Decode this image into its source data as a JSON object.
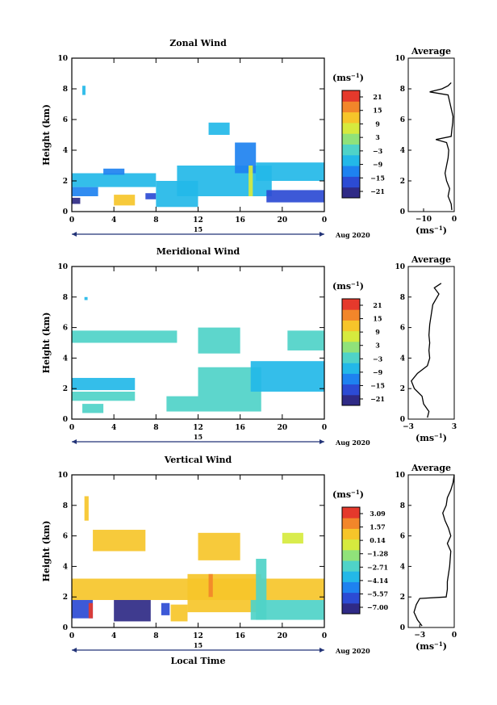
{
  "figure": {
    "bottom_xlabel": "Local Time",
    "date_label": "Aug 2020",
    "day_label": "15",
    "unit_label": "(ms",
    "unit_sup": "−1",
    "avg_title": "Average"
  },
  "chart_data": [
    {
      "type": "heatmap",
      "title": "Zonal Wind",
      "ylabel": "Height (km)",
      "xlim": [
        0,
        24
      ],
      "x_ticks": [
        "0",
        "4",
        "8",
        "12",
        "16",
        "20",
        "0"
      ],
      "ylim": [
        0,
        10
      ],
      "y_ticks": [
        "0",
        "2",
        "4",
        "6",
        "8",
        "10"
      ],
      "colorbar": {
        "ticks": [
          "21",
          "15",
          "9",
          "3",
          "−3",
          "−9",
          "−15",
          "−21"
        ],
        "range": [
          -24,
          24
        ]
      },
      "regions": [
        {
          "x": [
            1,
            1.3
          ],
          "y": [
            7.6,
            8.2
          ],
          "v": -9
        },
        {
          "x": [
            0,
            2.5
          ],
          "y": [
            1.0,
            1.6
          ],
          "v": -12
        },
        {
          "x": [
            0,
            8
          ],
          "y": [
            1.6,
            2.5
          ],
          "v": -8
        },
        {
          "x": [
            3,
            5
          ],
          "y": [
            2.4,
            2.8
          ],
          "v": -10
        },
        {
          "x": [
            4,
            6
          ],
          "y": [
            0.4,
            1.1
          ],
          "v": 12
        },
        {
          "x": [
            7,
            8
          ],
          "y": [
            0.8,
            1.2
          ],
          "v": -19
        },
        {
          "x": [
            8,
            12
          ],
          "y": [
            0.3,
            2.0
          ],
          "v": -6
        },
        {
          "x": [
            10,
            19
          ],
          "y": [
            1.0,
            3.0
          ],
          "v": -9
        },
        {
          "x": [
            13,
            15
          ],
          "y": [
            5.0,
            5.8
          ],
          "v": -8
        },
        {
          "x": [
            15.5,
            17.5
          ],
          "y": [
            2.5,
            4.5
          ],
          "v": -10
        },
        {
          "x": [
            17.5,
            24
          ],
          "y": [
            2.0,
            3.2
          ],
          "v": -8
        },
        {
          "x": [
            18.5,
            24
          ],
          "y": [
            0.6,
            1.4
          ],
          "v": -17
        },
        {
          "x": [
            16.8,
            17.2
          ],
          "y": [
            1.0,
            3.0
          ],
          "v": 5
        },
        {
          "x": [
            0,
            0.8
          ],
          "y": [
            0.5,
            0.9
          ],
          "v": -20
        }
      ],
      "average": {
        "xlim": [
          -15,
          0
        ],
        "x_ticks": [
          "−10",
          "0"
        ],
        "xlabel": "(ms",
        "profile": [
          [
            0.1,
            -0.8
          ],
          [
            0.5,
            -1
          ],
          [
            1,
            -2
          ],
          [
            1.5,
            -1.5
          ],
          [
            2,
            -2.5
          ],
          [
            2.5,
            -3
          ],
          [
            3,
            -2.5
          ],
          [
            3.5,
            -2
          ],
          [
            4,
            -1.8
          ],
          [
            4.5,
            -2.5
          ],
          [
            4.7,
            -6
          ],
          [
            4.9,
            -1
          ],
          [
            5.3,
            -0.8
          ],
          [
            5.8,
            -0.5
          ],
          [
            6.2,
            -0.4
          ],
          [
            7.6,
            -2
          ],
          [
            7.8,
            -8
          ],
          [
            8.0,
            -4
          ],
          [
            8.2,
            -2
          ],
          [
            8.4,
            -1
          ]
        ]
      }
    },
    {
      "type": "heatmap",
      "title": "Meridional Wind",
      "ylabel": "Height (km)",
      "xlim": [
        0,
        24
      ],
      "x_ticks": [
        "0",
        "4",
        "8",
        "12",
        "16",
        "20",
        "0"
      ],
      "ylim": [
        0,
        10
      ],
      "y_ticks": [
        "0",
        "2",
        "4",
        "6",
        "8",
        "10"
      ],
      "colorbar": {
        "ticks": [
          "21",
          "15",
          "9",
          "3",
          "−3",
          "−9",
          "−15",
          "−21"
        ],
        "range": [
          -24,
          24
        ]
      },
      "regions": [
        {
          "x": [
            1.2,
            1.5
          ],
          "y": [
            7.8,
            8.0
          ],
          "v": -6
        },
        {
          "x": [
            0,
            10
          ],
          "y": [
            5.0,
            5.8
          ],
          "v": -4
        },
        {
          "x": [
            12,
            16
          ],
          "y": [
            4.3,
            6.0
          ],
          "v": -2
        },
        {
          "x": [
            20.5,
            24
          ],
          "y": [
            4.5,
            5.8
          ],
          "v": -3
        },
        {
          "x": [
            0,
            6
          ],
          "y": [
            1.9,
            2.7
          ],
          "v": -8
        },
        {
          "x": [
            0,
            6
          ],
          "y": [
            1.2,
            1.8
          ],
          "v": -2
        },
        {
          "x": [
            12,
            18
          ],
          "y": [
            0.5,
            3.4
          ],
          "v": -3
        },
        {
          "x": [
            17,
            24
          ],
          "y": [
            1.8,
            3.8
          ],
          "v": -9
        },
        {
          "x": [
            1,
            3
          ],
          "y": [
            0.4,
            1.0
          ],
          "v": -1
        },
        {
          "x": [
            9,
            12
          ],
          "y": [
            0.5,
            1.5
          ],
          "v": -4
        }
      ],
      "average": {
        "xlim": [
          -3,
          3
        ],
        "x_ticks": [
          "−3",
          "3"
        ],
        "xlabel": "(ms",
        "profile": [
          [
            0.1,
            -0.5
          ],
          [
            0.5,
            -0.3
          ],
          [
            1.0,
            -1.0
          ],
          [
            1.5,
            -1.2
          ],
          [
            2.0,
            -2.2
          ],
          [
            2.5,
            -2.6
          ],
          [
            3.0,
            -1.8
          ],
          [
            3.5,
            -0.5
          ],
          [
            4.0,
            -0.2
          ],
          [
            4.5,
            -0.3
          ],
          [
            5.0,
            -0.2
          ],
          [
            5.5,
            -0.3
          ],
          [
            6.2,
            -0.2
          ],
          [
            7.5,
            0.2
          ],
          [
            8.2,
            1.0
          ],
          [
            8.6,
            0.4
          ],
          [
            8.9,
            1.3
          ]
        ]
      }
    },
    {
      "type": "heatmap",
      "title": "Vertical Wind",
      "ylabel": "Height (km)",
      "xlabel": "Local Time",
      "xlim": [
        0,
        24
      ],
      "x_ticks": [
        "0",
        "4",
        "8",
        "12",
        "16",
        "20",
        "0"
      ],
      "ylim": [
        0,
        10
      ],
      "y_ticks": [
        "0",
        "2",
        "4",
        "6",
        "8",
        "10"
      ],
      "colorbar": {
        "ticks": [
          "3.09",
          "1.57",
          "0.14",
          "−1.28",
          "−2.71",
          "−4.14",
          "−5.57",
          "−7.00"
        ],
        "range": [
          -7.7,
          3.8
        ]
      },
      "regions": [
        {
          "x": [
            1.2,
            1.6
          ],
          "y": [
            7.0,
            8.6
          ],
          "v": 0.5
        },
        {
          "x": [
            2,
            7
          ],
          "y": [
            5.0,
            6.4
          ],
          "v": 0.4
        },
        {
          "x": [
            12,
            16
          ],
          "y": [
            4.4,
            6.2
          ],
          "v": 0.6
        },
        {
          "x": [
            20,
            22
          ],
          "y": [
            5.5,
            6.2
          ],
          "v": 0.3
        },
        {
          "x": [
            0,
            24
          ],
          "y": [
            1.8,
            3.2
          ],
          "v": 0.6
        },
        {
          "x": [
            11,
            18
          ],
          "y": [
            1.0,
            3.5
          ],
          "v": 0.4
        },
        {
          "x": [
            0,
            2
          ],
          "y": [
            0.6,
            1.8
          ],
          "v": -6.5
        },
        {
          "x": [
            4,
            7.5
          ],
          "y": [
            0.4,
            1.8
          ],
          "v": -7.5
        },
        {
          "x": [
            8.5,
            9.3
          ],
          "y": [
            0.8,
            1.6
          ],
          "v": -6.5
        },
        {
          "x": [
            17,
            24
          ],
          "y": [
            0.5,
            1.8
          ],
          "v": -3.0
        },
        {
          "x": [
            17.5,
            18.5
          ],
          "y": [
            0.5,
            4.5
          ],
          "v": -2.2
        },
        {
          "x": [
            13,
            13.4
          ],
          "y": [
            2.0,
            3.5
          ],
          "v": 2.5
        },
        {
          "x": [
            1.6,
            2.0
          ],
          "y": [
            0.6,
            1.6
          ],
          "v": 3.2
        },
        {
          "x": [
            9.4,
            11
          ],
          "y": [
            0.4,
            1.5
          ],
          "v": 0.6
        }
      ],
      "average": {
        "xlim": [
          -4,
          0
        ],
        "x_ticks": [
          "−3",
          "0"
        ],
        "xlabel": "(ms",
        "profile": [
          [
            0.1,
            -2.8
          ],
          [
            0.5,
            -3.2
          ],
          [
            1.0,
            -3.5
          ],
          [
            1.5,
            -3.3
          ],
          [
            1.9,
            -3.0
          ],
          [
            2.0,
            -0.7
          ],
          [
            2.5,
            -0.6
          ],
          [
            3.0,
            -0.6
          ],
          [
            4.0,
            -0.4
          ],
          [
            5.0,
            -0.3
          ],
          [
            5.5,
            -0.6
          ],
          [
            6.0,
            -0.3
          ],
          [
            6.5,
            -0.5
          ],
          [
            7.0,
            -0.8
          ],
          [
            7.5,
            -1.0
          ],
          [
            8.0,
            -0.7
          ],
          [
            8.5,
            -0.6
          ],
          [
            9.0,
            -0.3
          ],
          [
            9.5,
            -0.1
          ],
          [
            10,
            0
          ]
        ]
      }
    }
  ]
}
